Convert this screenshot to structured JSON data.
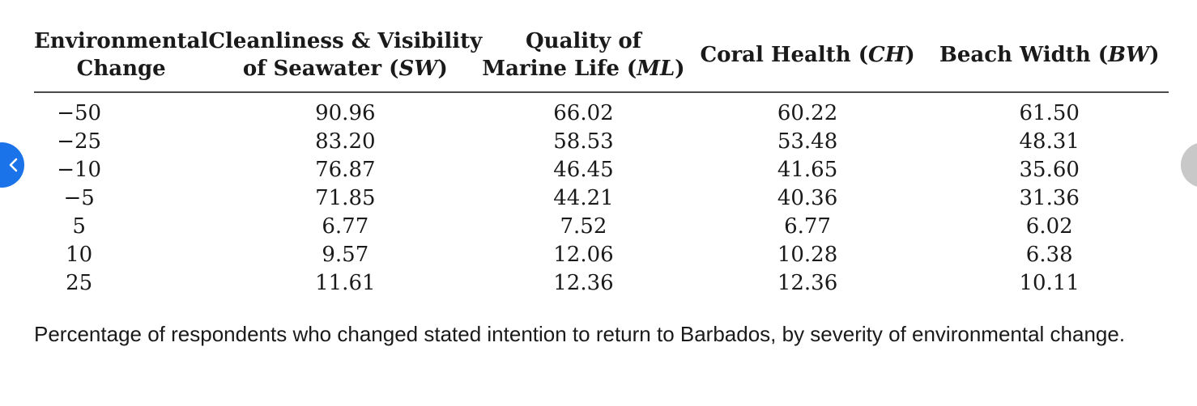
{
  "table": {
    "headers": [
      {
        "lines": [
          "Environmental",
          "Change"
        ],
        "italic": []
      },
      {
        "lines": [
          "Cleanliness & Visibility",
          "of Seawater ("
        ],
        "abbr": "SW"
      },
      {
        "lines": [
          "Quality of",
          "Marine Life ("
        ],
        "abbr": "ML"
      },
      {
        "lines": [
          "Coral Health ("
        ],
        "abbr": "CH"
      },
      {
        "lines": [
          "Beach Width ("
        ],
        "abbr": "BW"
      }
    ],
    "header_text": {
      "h0_l1": "Environmental",
      "h0_l2": "Change",
      "h1_l1": "Cleanliness & Visibility",
      "h1_l2_pre": "of Seawater (",
      "h1_abbr": "SW",
      "h2_l1": "Quality of",
      "h2_l2_pre": "Marine Life (",
      "h2_abbr": "ML",
      "h3_pre": "Coral Health (",
      "h3_abbr": "CH",
      "h4_pre": "Beach Width (",
      "h4_abbr": "BW",
      "close_paren": ")"
    },
    "rows": [
      [
        "−50",
        "90.96",
        "66.02",
        "60.22",
        "61.50"
      ],
      [
        "−25",
        "83.20",
        "58.53",
        "53.48",
        "48.31"
      ],
      [
        "−10",
        "76.87",
        "46.45",
        "41.65",
        "35.60"
      ],
      [
        "−5",
        "71.85",
        "44.21",
        "40.36",
        "31.36"
      ],
      [
        "5",
        "6.77",
        "7.52",
        "6.77",
        "6.02"
      ],
      [
        "10",
        "9.57",
        "12.06",
        "10.28",
        "6.38"
      ],
      [
        "25",
        "11.61",
        "12.36",
        "12.36",
        "10.11"
      ]
    ]
  },
  "caption": "Percentage of respondents who changed stated intention to return to Barbados, by severity of environmental change.",
  "nav": {
    "prev_icon": "chevron-left-icon",
    "prev_color": "#1a73e8",
    "next_color": "#c8c8c8"
  }
}
